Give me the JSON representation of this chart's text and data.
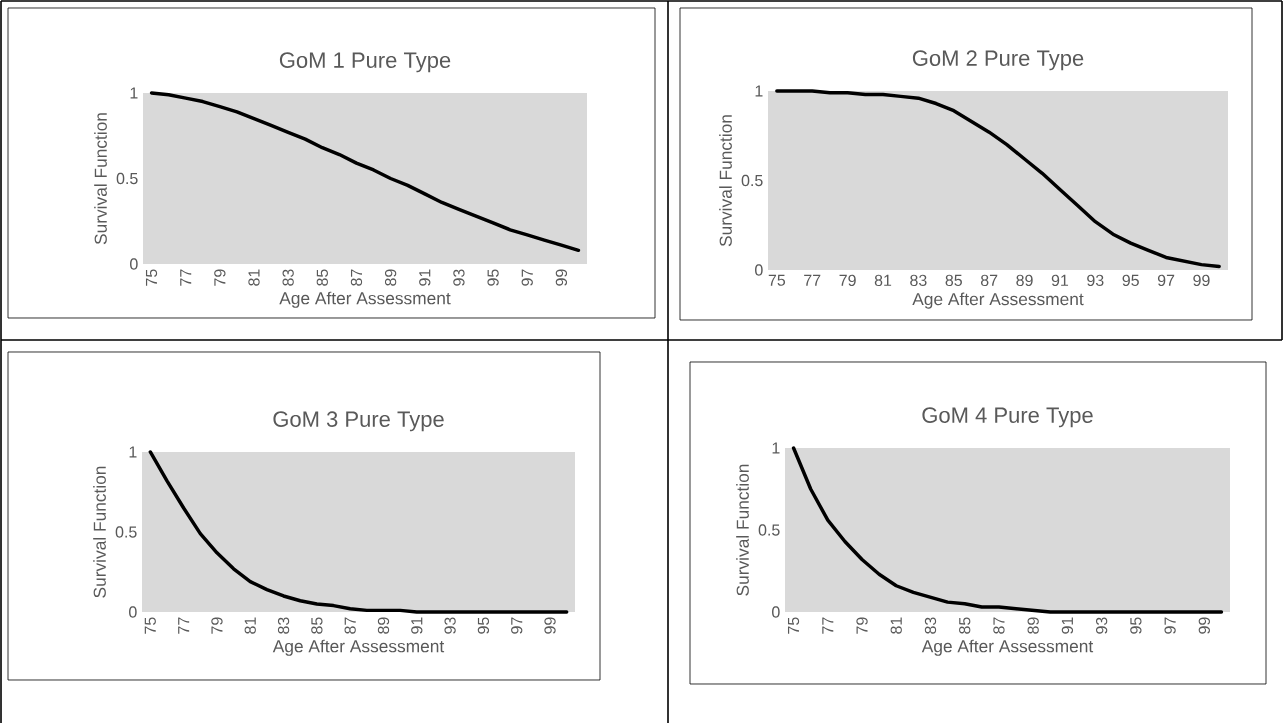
{
  "chart_data": [
    {
      "type": "line",
      "title": "GoM 1 Pure Type",
      "xlabel": "Age After Assessment",
      "ylabel": "Survival Function",
      "color": "#000000",
      "ylim": [
        0,
        1
      ],
      "yticks": [
        0,
        0.5,
        1
      ],
      "categories": [
        "75",
        null,
        "77",
        null,
        "79",
        null,
        "81",
        null,
        "83",
        null,
        "85",
        null,
        "87",
        null,
        "89",
        null,
        "91",
        null,
        "93",
        null,
        "95",
        null,
        "97",
        null,
        "99",
        null
      ],
      "values": [
        1.0,
        0.99,
        0.97,
        0.95,
        0.92,
        0.89,
        0.85,
        0.81,
        0.77,
        0.73,
        0.68,
        0.64,
        0.59,
        0.55,
        0.5,
        0.46,
        0.41,
        0.36,
        0.32,
        0.28,
        0.24,
        0.2,
        0.17,
        0.14,
        0.11,
        0.08
      ]
    },
    {
      "type": "line",
      "title": "GoM 2 Pure Type",
      "xlabel": "Age After Assessment",
      "ylabel": "Survival Function",
      "color": "#000000",
      "ylim": [
        0,
        1
      ],
      "yticks": [
        0,
        0.5,
        1
      ],
      "categories": [
        "75",
        null,
        "77",
        null,
        "79",
        null,
        "81",
        null,
        "83",
        null,
        "85",
        null,
        "87",
        null,
        "89",
        null,
        "91",
        null,
        "93",
        null,
        "95",
        null,
        "97",
        null,
        "99",
        null
      ],
      "values": [
        1.0,
        1.0,
        1.0,
        0.99,
        0.99,
        0.98,
        0.98,
        0.97,
        0.96,
        0.93,
        0.89,
        0.83,
        0.77,
        0.7,
        0.62,
        0.54,
        0.45,
        0.36,
        0.27,
        0.2,
        0.15,
        0.11,
        0.07,
        0.05,
        0.03,
        0.02
      ]
    },
    {
      "type": "line",
      "title": "GoM 3 Pure Type",
      "xlabel": "Age After Assessment",
      "ylabel": "Survival Function",
      "color": "#000000",
      "ylim": [
        0,
        1
      ],
      "yticks": [
        0,
        0.5,
        1
      ],
      "categories": [
        "75",
        null,
        "77",
        null,
        "79",
        null,
        "81",
        null,
        "83",
        null,
        "85",
        null,
        "87",
        null,
        "89",
        null,
        "91",
        null,
        "93",
        null,
        "95",
        null,
        "97",
        null,
        "99",
        null
      ],
      "values": [
        1.0,
        0.82,
        0.65,
        0.49,
        0.37,
        0.27,
        0.19,
        0.14,
        0.1,
        0.07,
        0.05,
        0.04,
        0.02,
        0.01,
        0.01,
        0.01,
        0,
        0,
        0,
        0,
        0,
        0,
        0,
        0,
        0,
        0
      ]
    },
    {
      "type": "line",
      "title": "GoM 4 Pure Type",
      "xlabel": "Age After Assessment",
      "ylabel": "Survival Function",
      "color": "#000000",
      "ylim": [
        0,
        1
      ],
      "yticks": [
        0,
        0.5,
        1
      ],
      "categories": [
        "75",
        null,
        "77",
        null,
        "79",
        null,
        "81",
        null,
        "83",
        null,
        "85",
        null,
        "87",
        null,
        "89",
        null,
        "91",
        null,
        "93",
        null,
        "95",
        null,
        "97",
        null,
        "99",
        null
      ],
      "values": [
        1.0,
        0.75,
        0.56,
        0.43,
        0.32,
        0.23,
        0.16,
        0.12,
        0.09,
        0.06,
        0.05,
        0.03,
        0.03,
        0.02,
        0.01,
        0,
        0,
        0,
        0,
        0,
        0,
        0,
        0,
        0,
        0,
        0
      ]
    }
  ]
}
